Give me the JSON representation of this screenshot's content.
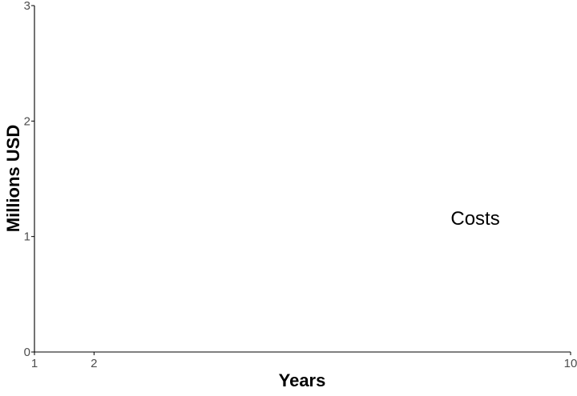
{
  "chart_data": {
    "type": "line",
    "title": "",
    "xlabel": "Years",
    "ylabel": "Millions USD",
    "x_ticks": [
      1,
      2,
      10
    ],
    "y_ticks": [
      0,
      1,
      2,
      3
    ],
    "xlim": [
      1,
      10
    ],
    "ylim": [
      0,
      3
    ],
    "grid": false,
    "series": [],
    "annotations": [
      {
        "text": "Costs",
        "x": 8.4,
        "y": 1.1
      }
    ],
    "colors": {
      "axis": "#000000",
      "tick_label": "#4d4d4d",
      "text": "#000000",
      "background": "#ffffff"
    }
  }
}
